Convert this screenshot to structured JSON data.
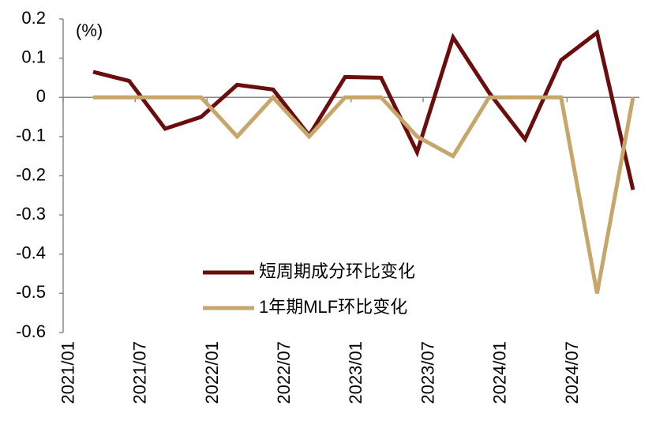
{
  "chart_data": {
    "type": "line",
    "y_label": "(%)",
    "xtick_labels": [
      "2021/01",
      "2021/07",
      "2022/01",
      "2022/07",
      "2023/01",
      "2023/07",
      "2024/01",
      "2024/07"
    ],
    "categories": [
      null,
      null,
      null,
      null,
      null,
      null,
      null,
      null,
      null,
      null,
      null,
      null,
      null,
      null,
      null,
      null
    ],
    "series": [
      {
        "name": "短周期成分环比变化",
        "color": "#6b0d0d",
        "values": [
          0.065,
          0.042,
          -0.08,
          -0.05,
          0.032,
          0.02,
          -0.097,
          0.052,
          0.05,
          -0.14,
          0.153,
          0.012,
          -0.107,
          0.095,
          0.165,
          -0.236
        ]
      },
      {
        "name": "1年期MLF环比变化",
        "color": "#c6a66b",
        "values": [
          0,
          0,
          0,
          0,
          -0.1,
          0,
          -0.1,
          0,
          0,
          -0.1,
          -0.15,
          0,
          0,
          0,
          -0.5,
          0
        ]
      }
    ],
    "ylim": [
      -0.6,
      0.2
    ],
    "yticks": [
      0.2,
      0.1,
      0,
      -0.1,
      -0.2,
      -0.3,
      -0.4,
      -0.5,
      -0.6
    ]
  }
}
